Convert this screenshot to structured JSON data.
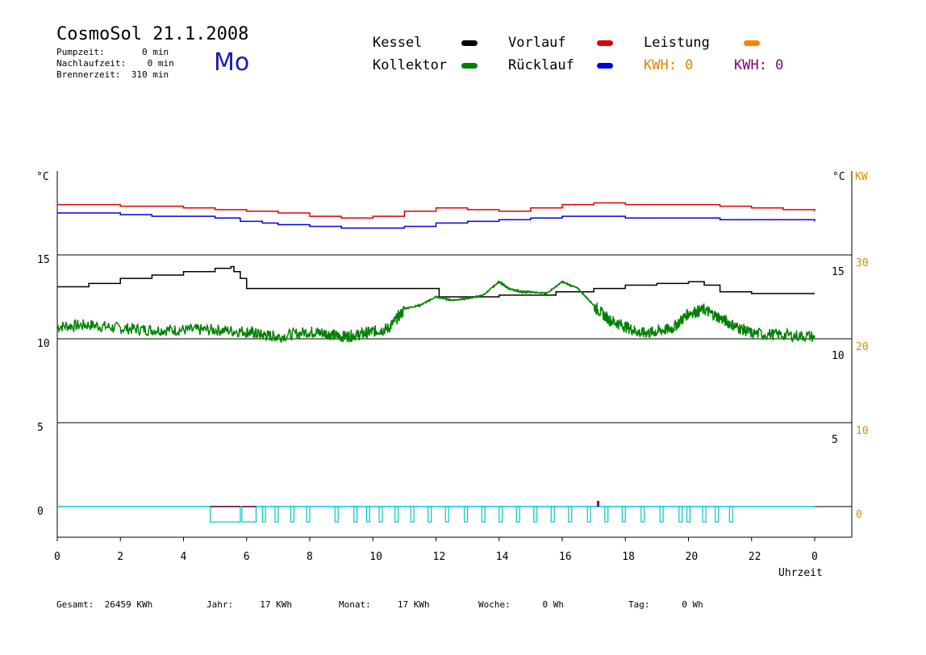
{
  "header": {
    "title": "CosmoSol 21.1.2008",
    "pumpzeit": "Pumpzeit:       0 min",
    "nachlaufzeit": "Nachlaufzeit:    0 min",
    "brennerzeit": "Brennerzeit:  310 min",
    "day": "Mo"
  },
  "legend": {
    "kessel": {
      "label": "Kessel",
      "color": "#000000"
    },
    "vorlauf": {
      "label": "Vorlauf",
      "color": "#e00000"
    },
    "leistung": {
      "label": "Leistung",
      "color": "#ff8000"
    },
    "kollektor": {
      "label": "Kollektor",
      "color": "#008000"
    },
    "ruecklauf": {
      "label": "Rücklauf",
      "color": "#0000e0"
    },
    "kwh1": {
      "label": "KWH: 0",
      "color": "#e08000"
    },
    "kwh2": {
      "label": "KWH: 0",
      "color": "#800080"
    }
  },
  "units": {
    "left": "°C",
    "right_c": "°C",
    "right_kw": "KW"
  },
  "footer": {
    "gesamt": "Gesamt:  26459 KWh",
    "jahr": "Jahr:     17 KWh",
    "monat": "Monat:     17 KWh",
    "woche": "Woche:      0 Wh",
    "tag": "Tag:      0 Wh"
  },
  "chart_data": {
    "type": "line",
    "xlabel": "Uhrzeit",
    "x_ticks": [
      "0",
      "2",
      "4",
      "6",
      "8",
      "10",
      "12",
      "14",
      "16",
      "18",
      "20",
      "22",
      "0"
    ],
    "y_left_ticks": [
      "0",
      "5",
      "10",
      "15"
    ],
    "y_right_c_ticks": [
      "5",
      "10",
      "15"
    ],
    "y_right_kw_ticks": [
      "0",
      "10",
      "20",
      "30"
    ],
    "series": [
      {
        "name": "Vorlauf",
        "color": "#e00000",
        "x": [
          0,
          2,
          4,
          5,
          6,
          7,
          8,
          9,
          10,
          11,
          12,
          13,
          14,
          15,
          16,
          17,
          18,
          19,
          20,
          21,
          22,
          23,
          24
        ],
        "y": [
          18.0,
          17.9,
          17.8,
          17.7,
          17.6,
          17.5,
          17.3,
          17.2,
          17.3,
          17.6,
          17.8,
          17.7,
          17.6,
          17.8,
          18.0,
          18.1,
          18.0,
          18.0,
          18.0,
          17.9,
          17.8,
          17.7,
          17.6
        ]
      },
      {
        "name": "Rücklauf",
        "color": "#0000e0",
        "x": [
          0,
          1,
          2,
          3,
          4,
          5,
          5.8,
          6.5,
          7,
          8,
          9,
          10,
          11,
          12,
          13,
          14,
          15,
          16,
          17,
          18,
          19,
          20,
          21,
          22,
          23,
          24
        ],
        "y": [
          17.5,
          17.5,
          17.4,
          17.3,
          17.3,
          17.2,
          17.0,
          16.9,
          16.8,
          16.7,
          16.6,
          16.6,
          16.7,
          16.9,
          17.0,
          17.1,
          17.2,
          17.3,
          17.3,
          17.2,
          17.2,
          17.2,
          17.1,
          17.1,
          17.1,
          17.0
        ]
      },
      {
        "name": "Kessel",
        "color": "#000000",
        "x": [
          0,
          1,
          2,
          3,
          4,
          5,
          5.5,
          5.6,
          5.8,
          6,
          7,
          8,
          9,
          10,
          11,
          12,
          12.1,
          13,
          14,
          15,
          15.8,
          16,
          17,
          18,
          19,
          20,
          20.5,
          21,
          22,
          23,
          24
        ],
        "y": [
          13.1,
          13.3,
          13.6,
          13.8,
          14.0,
          14.2,
          14.3,
          14.0,
          13.6,
          13.0,
          13.0,
          13.0,
          13.0,
          13.0,
          13.0,
          13.0,
          12.5,
          12.5,
          12.6,
          12.6,
          12.8,
          12.8,
          13.0,
          13.2,
          13.3,
          13.4,
          13.2,
          12.8,
          12.7,
          12.7,
          12.7
        ]
      },
      {
        "name": "Kollektor",
        "color": "#008000",
        "x": [
          0,
          1,
          2,
          3,
          4,
          5,
          6,
          6.5,
          7,
          8,
          8.5,
          9,
          9.5,
          10,
          10.5,
          11,
          11.5,
          12,
          12.5,
          13,
          13.5,
          14,
          14.3,
          14.7,
          15,
          15.5,
          16,
          16.5,
          17,
          17.5,
          18,
          18.5,
          19,
          19.5,
          20,
          20.5,
          21,
          21.5,
          22,
          23,
          24
        ],
        "y": [
          10.8,
          10.9,
          10.7,
          10.6,
          10.6,
          10.6,
          10.5,
          10.3,
          10.2,
          10.5,
          10.4,
          10.2,
          10.3,
          10.5,
          10.7,
          11.8,
          12.0,
          12.5,
          12.3,
          12.4,
          12.6,
          13.4,
          13.0,
          12.8,
          12.8,
          12.7,
          13.4,
          13.0,
          12.0,
          11.2,
          10.8,
          10.4,
          10.5,
          10.7,
          11.6,
          11.8,
          11.3,
          10.8,
          10.4,
          10.3,
          10.2
        ]
      }
    ]
  }
}
